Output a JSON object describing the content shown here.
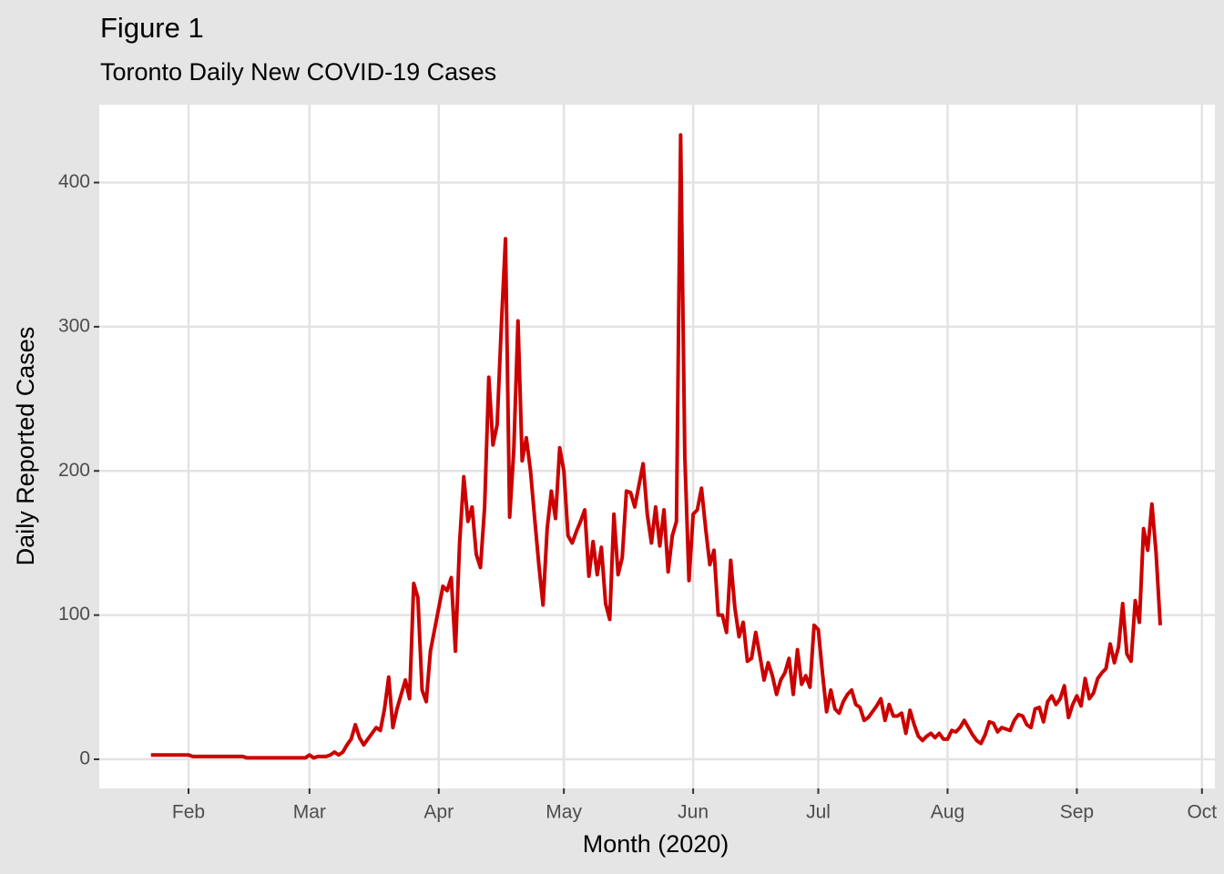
{
  "chart_data": {
    "type": "line",
    "title": "Figure 1",
    "subtitle": "Toronto Daily New COVID-19 Cases",
    "x_label": "Month (2020)",
    "y_label": "Daily Reported Cases",
    "color": "#cc0000",
    "grid": true,
    "xlim": [
      9.6,
      277.1
    ],
    "ylim": [
      -20.2,
      454
    ],
    "xticks": [
      {
        "value": 31,
        "label": "Feb"
      },
      {
        "value": 60,
        "label": "Mar"
      },
      {
        "value": 91,
        "label": "Apr"
      },
      {
        "value": 121,
        "label": "May"
      },
      {
        "value": 152,
        "label": "Jun"
      },
      {
        "value": 182,
        "label": "Jul"
      },
      {
        "value": 213,
        "label": "Aug"
      },
      {
        "value": 244,
        "label": "Sep"
      },
      {
        "value": 274,
        "label": "Oct"
      }
    ],
    "yticks": [
      0,
      100,
      200,
      300,
      400
    ],
    "x": [
      22,
      23,
      24,
      25,
      26,
      27,
      28,
      29,
      30,
      31,
      32,
      33,
      34,
      35,
      36,
      37,
      38,
      39,
      40,
      41,
      42,
      43,
      44,
      45,
      46,
      47,
      48,
      49,
      50,
      51,
      52,
      53,
      54,
      55,
      56,
      57,
      58,
      59,
      60,
      61,
      62,
      63,
      64,
      65,
      66,
      67,
      68,
      69,
      70,
      71,
      72,
      73,
      74,
      75,
      76,
      77,
      78,
      79,
      80,
      81,
      82,
      83,
      84,
      85,
      86,
      87,
      88,
      89,
      90,
      91,
      92,
      93,
      94,
      95,
      96,
      97,
      98,
      99,
      100,
      101,
      102,
      103,
      104,
      105,
      106,
      107,
      108,
      109,
      110,
      111,
      112,
      113,
      114,
      115,
      116,
      117,
      118,
      119,
      120,
      121,
      122,
      123,
      124,
      125,
      126,
      127,
      128,
      129,
      130,
      131,
      132,
      133,
      134,
      135,
      136,
      137,
      138,
      139,
      140,
      141,
      142,
      143,
      144,
      145,
      146,
      147,
      148,
      149,
      150,
      151,
      152,
      153,
      154,
      155,
      156,
      157,
      158,
      159,
      160,
      161,
      162,
      163,
      164,
      165,
      166,
      167,
      168,
      169,
      170,
      171,
      172,
      173,
      174,
      175,
      176,
      177,
      178,
      179,
      180,
      181,
      182,
      183,
      184,
      185,
      186,
      187,
      188,
      189,
      190,
      191,
      192,
      193,
      194,
      195,
      196,
      197,
      198,
      199,
      200,
      201,
      202,
      203,
      204,
      205,
      206,
      207,
      208,
      209,
      210,
      211,
      212,
      213,
      214,
      215,
      216,
      217,
      218,
      219,
      220,
      221,
      222,
      223,
      224,
      225,
      226,
      227,
      228,
      229,
      230,
      231,
      232,
      233,
      234,
      235,
      236,
      237,
      238,
      239,
      240,
      241,
      242,
      243,
      244,
      245,
      246,
      247,
      248,
      249,
      250,
      251,
      252,
      253,
      254,
      255,
      256,
      257,
      258,
      259,
      260,
      261,
      262,
      263,
      264
    ],
    "values": [
      3,
      3,
      3,
      3,
      3,
      3,
      3,
      3,
      3,
      3,
      2,
      2,
      2,
      2,
      2,
      2,
      2,
      2,
      2,
      2,
      2,
      2,
      2,
      1,
      1,
      1,
      1,
      1,
      1,
      1,
      1,
      1,
      1,
      1,
      1,
      1,
      1,
      1,
      3,
      1,
      2,
      2,
      2,
      3,
      5,
      3,
      5,
      10,
      14,
      24,
      15,
      10,
      14,
      18,
      22,
      20,
      35,
      57,
      22,
      35,
      45,
      55,
      42,
      122,
      112,
      48,
      40,
      75,
      90,
      105,
      120,
      117,
      126,
      75,
      150,
      196,
      165,
      175,
      142,
      133,
      175,
      265,
      218,
      232,
      300,
      361,
      168,
      215,
      304,
      207,
      223,
      200,
      167,
      135,
      107,
      160,
      186,
      167,
      216,
      200,
      155,
      150,
      158,
      165,
      173,
      127,
      151,
      128,
      147,
      108,
      97,
      170,
      128,
      140,
      186,
      185,
      175,
      190,
      205,
      170,
      150,
      175,
      148,
      173,
      130,
      155,
      165,
      433,
      210,
      124,
      170,
      173,
      188,
      160,
      135,
      145,
      100,
      100,
      88,
      138,
      105,
      85,
      95,
      68,
      70,
      88,
      72,
      55,
      67,
      58,
      45,
      55,
      60,
      70,
      45,
      76,
      52,
      58,
      50,
      93,
      90,
      60,
      33,
      48,
      35,
      32,
      40,
      45,
      48,
      38,
      36,
      27,
      29,
      33,
      37,
      42,
      27,
      38,
      30,
      30,
      32,
      18,
      34,
      24,
      16,
      13,
      16,
      18,
      15,
      18,
      14,
      14,
      20,
      19,
      22,
      27,
      22,
      17,
      13,
      11,
      17,
      26,
      25,
      19,
      22,
      21,
      20,
      27,
      31,
      30,
      24,
      22,
      35,
      36,
      26,
      40,
      44,
      38,
      42,
      51,
      29,
      38,
      44,
      37,
      56,
      42,
      46,
      56,
      60,
      63,
      80,
      67,
      78,
      108,
      73,
      68,
      110,
      95,
      160,
      145,
      177,
      143,
      93
    ]
  }
}
